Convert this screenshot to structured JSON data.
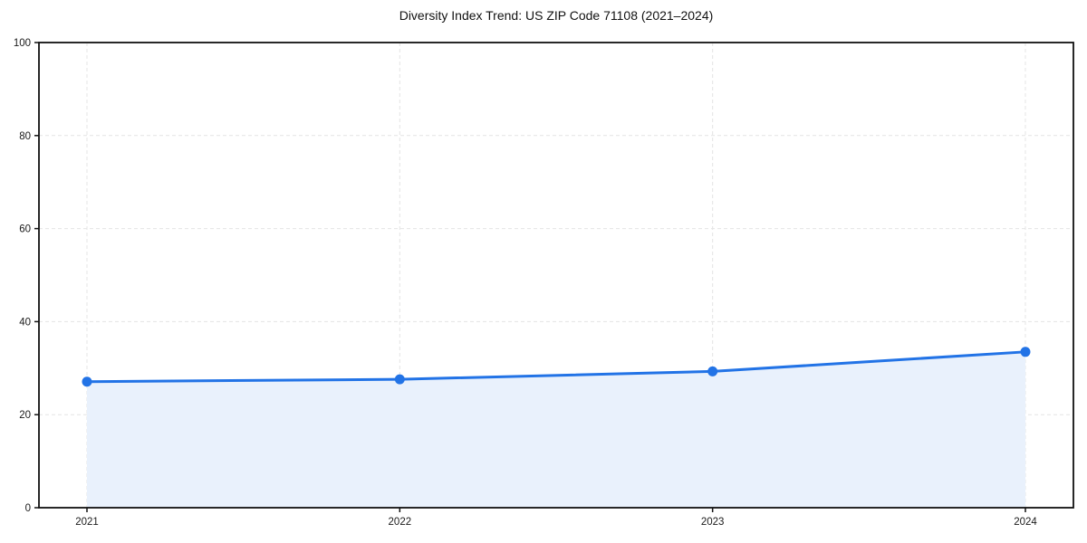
{
  "chart_data": {
    "type": "area",
    "title": "Diversity Index Trend: US ZIP Code 71108 (2021–2024)",
    "x": [
      "2021",
      "2022",
      "2023",
      "2024"
    ],
    "series": [
      {
        "name": "Diversity Index",
        "values": [
          27.1,
          27.6,
          29.3,
          33.5
        ]
      }
    ],
    "xlabel": "",
    "ylabel": "",
    "ylim": [
      0,
      100
    ],
    "yticks": [
      0,
      20,
      40,
      60,
      80,
      100
    ],
    "grid": {
      "horizontal": true,
      "vertical": true,
      "style": "dashed"
    },
    "legend": "none",
    "colors": {
      "line": "#2273e6",
      "marker": "#2273e6",
      "fill": "#e9f1fc",
      "grid": "#e4e4e4",
      "spine": "#111111",
      "tick_text": "#1a1a1a",
      "background": "#ffffff"
    }
  }
}
